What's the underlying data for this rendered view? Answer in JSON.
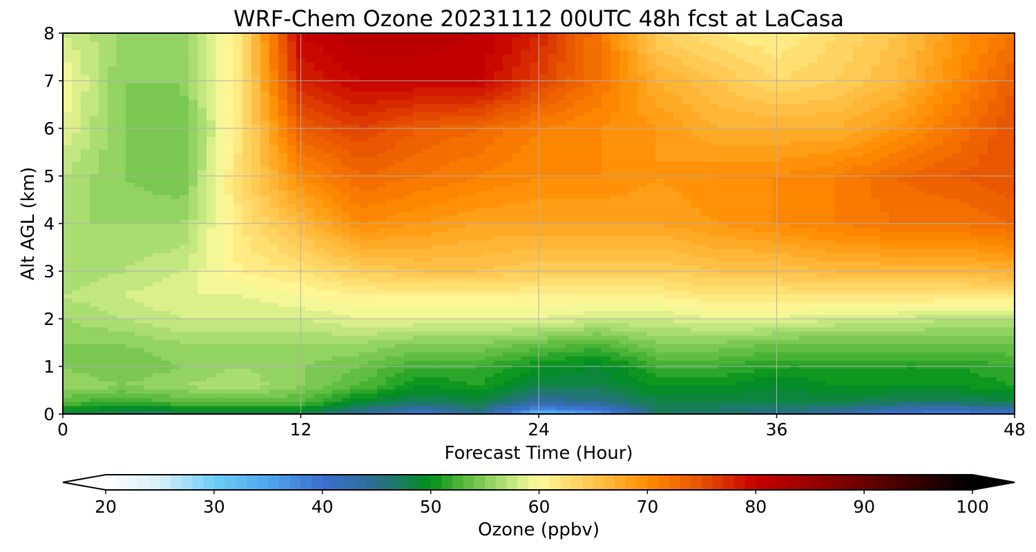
{
  "chart_data": {
    "type": "heatmap",
    "title": "WRF-Chem Ozone  20231112 00UTC 48h fcst at LaCasa",
    "xlabel": "Forecast Time (Hour)",
    "ylabel": "Alt AGL (km)",
    "xlim": [
      0,
      48
    ],
    "ylim": [
      0,
      8
    ],
    "xticks": [
      "0",
      "12",
      "24",
      "36",
      "48"
    ],
    "yticks": [
      "0",
      "1",
      "2",
      "3",
      "4",
      "5",
      "6",
      "7",
      "8"
    ],
    "grid": true,
    "x": [
      0,
      3,
      6,
      9,
      12,
      15,
      18,
      21,
      24,
      27,
      30,
      33,
      36,
      39,
      42,
      45,
      48
    ],
    "y": [
      0,
      0.25,
      0.6,
      1,
      1.5,
      2,
      2.5,
      3,
      4,
      5,
      6,
      7,
      8
    ],
    "z": [
      [
        48,
        47,
        47,
        47,
        47,
        44,
        40,
        45,
        32,
        36,
        47,
        46,
        45,
        43,
        39,
        38,
        40
      ],
      [
        53,
        52,
        53,
        53,
        53,
        49,
        47,
        48,
        44,
        45,
        48,
        48,
        48,
        48,
        47,
        47,
        48
      ],
      [
        56,
        55,
        56,
        57,
        55,
        53,
        50,
        51,
        48,
        48,
        50,
        50,
        49,
        50,
        50,
        50,
        51
      ],
      [
        55,
        54,
        55,
        56,
        55,
        54,
        52,
        52,
        50,
        49,
        52,
        52,
        51,
        51,
        51,
        51,
        52
      ],
      [
        55,
        55,
        56,
        56,
        56,
        56,
        55,
        55,
        54,
        53,
        55,
        55,
        54,
        54,
        54,
        54,
        54
      ],
      [
        56,
        57,
        58,
        58,
        58,
        59,
        59,
        59,
        59,
        58,
        58,
        59,
        59,
        58,
        58,
        57,
        57
      ],
      [
        57,
        58,
        59,
        59,
        60,
        61,
        61,
        61,
        61,
        61,
        61,
        62,
        62,
        62,
        62,
        62,
        62
      ],
      [
        56,
        57,
        58,
        61,
        62,
        64,
        65,
        65,
        64,
        64,
        64,
        65,
        65,
        66,
        66,
        66,
        67
      ],
      [
        56,
        56,
        56,
        62,
        66,
        70,
        69,
        68,
        68,
        68,
        68,
        69,
        70,
        71,
        72,
        72,
        73
      ],
      [
        57,
        55,
        54,
        63,
        70,
        73,
        72,
        71,
        70,
        70,
        69,
        70,
        70,
        71,
        73,
        74,
        75
      ],
      [
        59,
        55,
        54,
        62,
        74,
        76,
        74,
        73,
        71,
        70,
        69,
        67,
        67,
        67,
        69,
        72,
        75
      ],
      [
        60,
        55,
        55,
        62,
        78,
        80,
        80,
        80,
        76,
        72,
        67,
        65,
        63,
        64,
        66,
        70,
        74
      ],
      [
        58,
        56,
        55,
        62,
        80,
        82,
        82,
        81,
        78,
        72,
        64,
        62,
        61,
        63,
        65,
        69,
        72
      ]
    ],
    "colorbar": {
      "label": "Ozone  (ppbv)",
      "range": [
        20,
        100
      ],
      "step": 1,
      "extend": "both",
      "ticks": [
        "20",
        "30",
        "40",
        "50",
        "60",
        "70",
        "80",
        "90",
        "100"
      ]
    },
    "colors": {
      "grid": "#b0b0b0",
      "stops": [
        {
          "v": 20,
          "c": "#ffffff"
        },
        {
          "v": 25,
          "c": "#d8eefa"
        },
        {
          "v": 30,
          "c": "#6ecdf7"
        },
        {
          "v": 35,
          "c": "#4fa6ee"
        },
        {
          "v": 40,
          "c": "#3b6fd0"
        },
        {
          "v": 45,
          "c": "#2b6e8f"
        },
        {
          "v": 50,
          "c": "#00901a"
        },
        {
          "v": 53,
          "c": "#56b93a"
        },
        {
          "v": 57,
          "c": "#b6e27a"
        },
        {
          "v": 60,
          "c": "#fffb9c"
        },
        {
          "v": 63,
          "c": "#ffd96a"
        },
        {
          "v": 67,
          "c": "#ffb02e"
        },
        {
          "v": 70,
          "c": "#ff8c00"
        },
        {
          "v": 75,
          "c": "#e65100"
        },
        {
          "v": 80,
          "c": "#c80000"
        },
        {
          "v": 85,
          "c": "#9a0000"
        },
        {
          "v": 90,
          "c": "#6a0000"
        },
        {
          "v": 95,
          "c": "#330000"
        },
        {
          "v": 100,
          "c": "#000000"
        }
      ]
    }
  }
}
